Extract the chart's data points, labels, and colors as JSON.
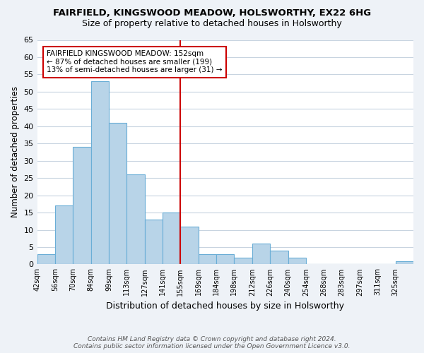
{
  "title1": "FAIRFIELD, KINGSWOOD MEADOW, HOLSWORTHY, EX22 6HG",
  "title2": "Size of property relative to detached houses in Holsworthy",
  "xlabel": "Distribution of detached houses by size in Holsworthy",
  "ylabel": "Number of detached properties",
  "bin_labels": [
    "42sqm",
    "56sqm",
    "70sqm",
    "84sqm",
    "99sqm",
    "113sqm",
    "127sqm",
    "141sqm",
    "155sqm",
    "169sqm",
    "184sqm",
    "198sqm",
    "212sqm",
    "226sqm",
    "240sqm",
    "254sqm",
    "268sqm",
    "283sqm",
    "297sqm",
    "311sqm",
    "325sqm"
  ],
  "bar_heights": [
    3,
    17,
    34,
    53,
    41,
    26,
    13,
    15,
    11,
    3,
    3,
    2,
    6,
    4,
    2,
    0,
    0,
    0,
    0,
    0,
    1
  ],
  "bar_color": "#b8d4e8",
  "bar_edge_color": "#6aaed6",
  "vline_x": 8.0,
  "vline_color": "#cc0000",
  "annotation_line1": "FAIRFIELD KINGSWOOD MEADOW: 152sqm",
  "annotation_line2": "← 87% of detached houses are smaller (199)",
  "annotation_line3": "13% of semi-detached houses are larger (31) →",
  "annotation_box_color": "#ffffff",
  "annotation_box_edge": "#cc0000",
  "ylim": [
    0,
    65
  ],
  "yticks": [
    0,
    5,
    10,
    15,
    20,
    25,
    30,
    35,
    40,
    45,
    50,
    55,
    60,
    65
  ],
  "footer1": "Contains HM Land Registry data © Crown copyright and database right 2024.",
  "footer2": "Contains public sector information licensed under the Open Government Licence v3.0.",
  "bg_color": "#eef2f7",
  "plot_bg_color": "#ffffff",
  "grid_color": "#c8d4e0"
}
